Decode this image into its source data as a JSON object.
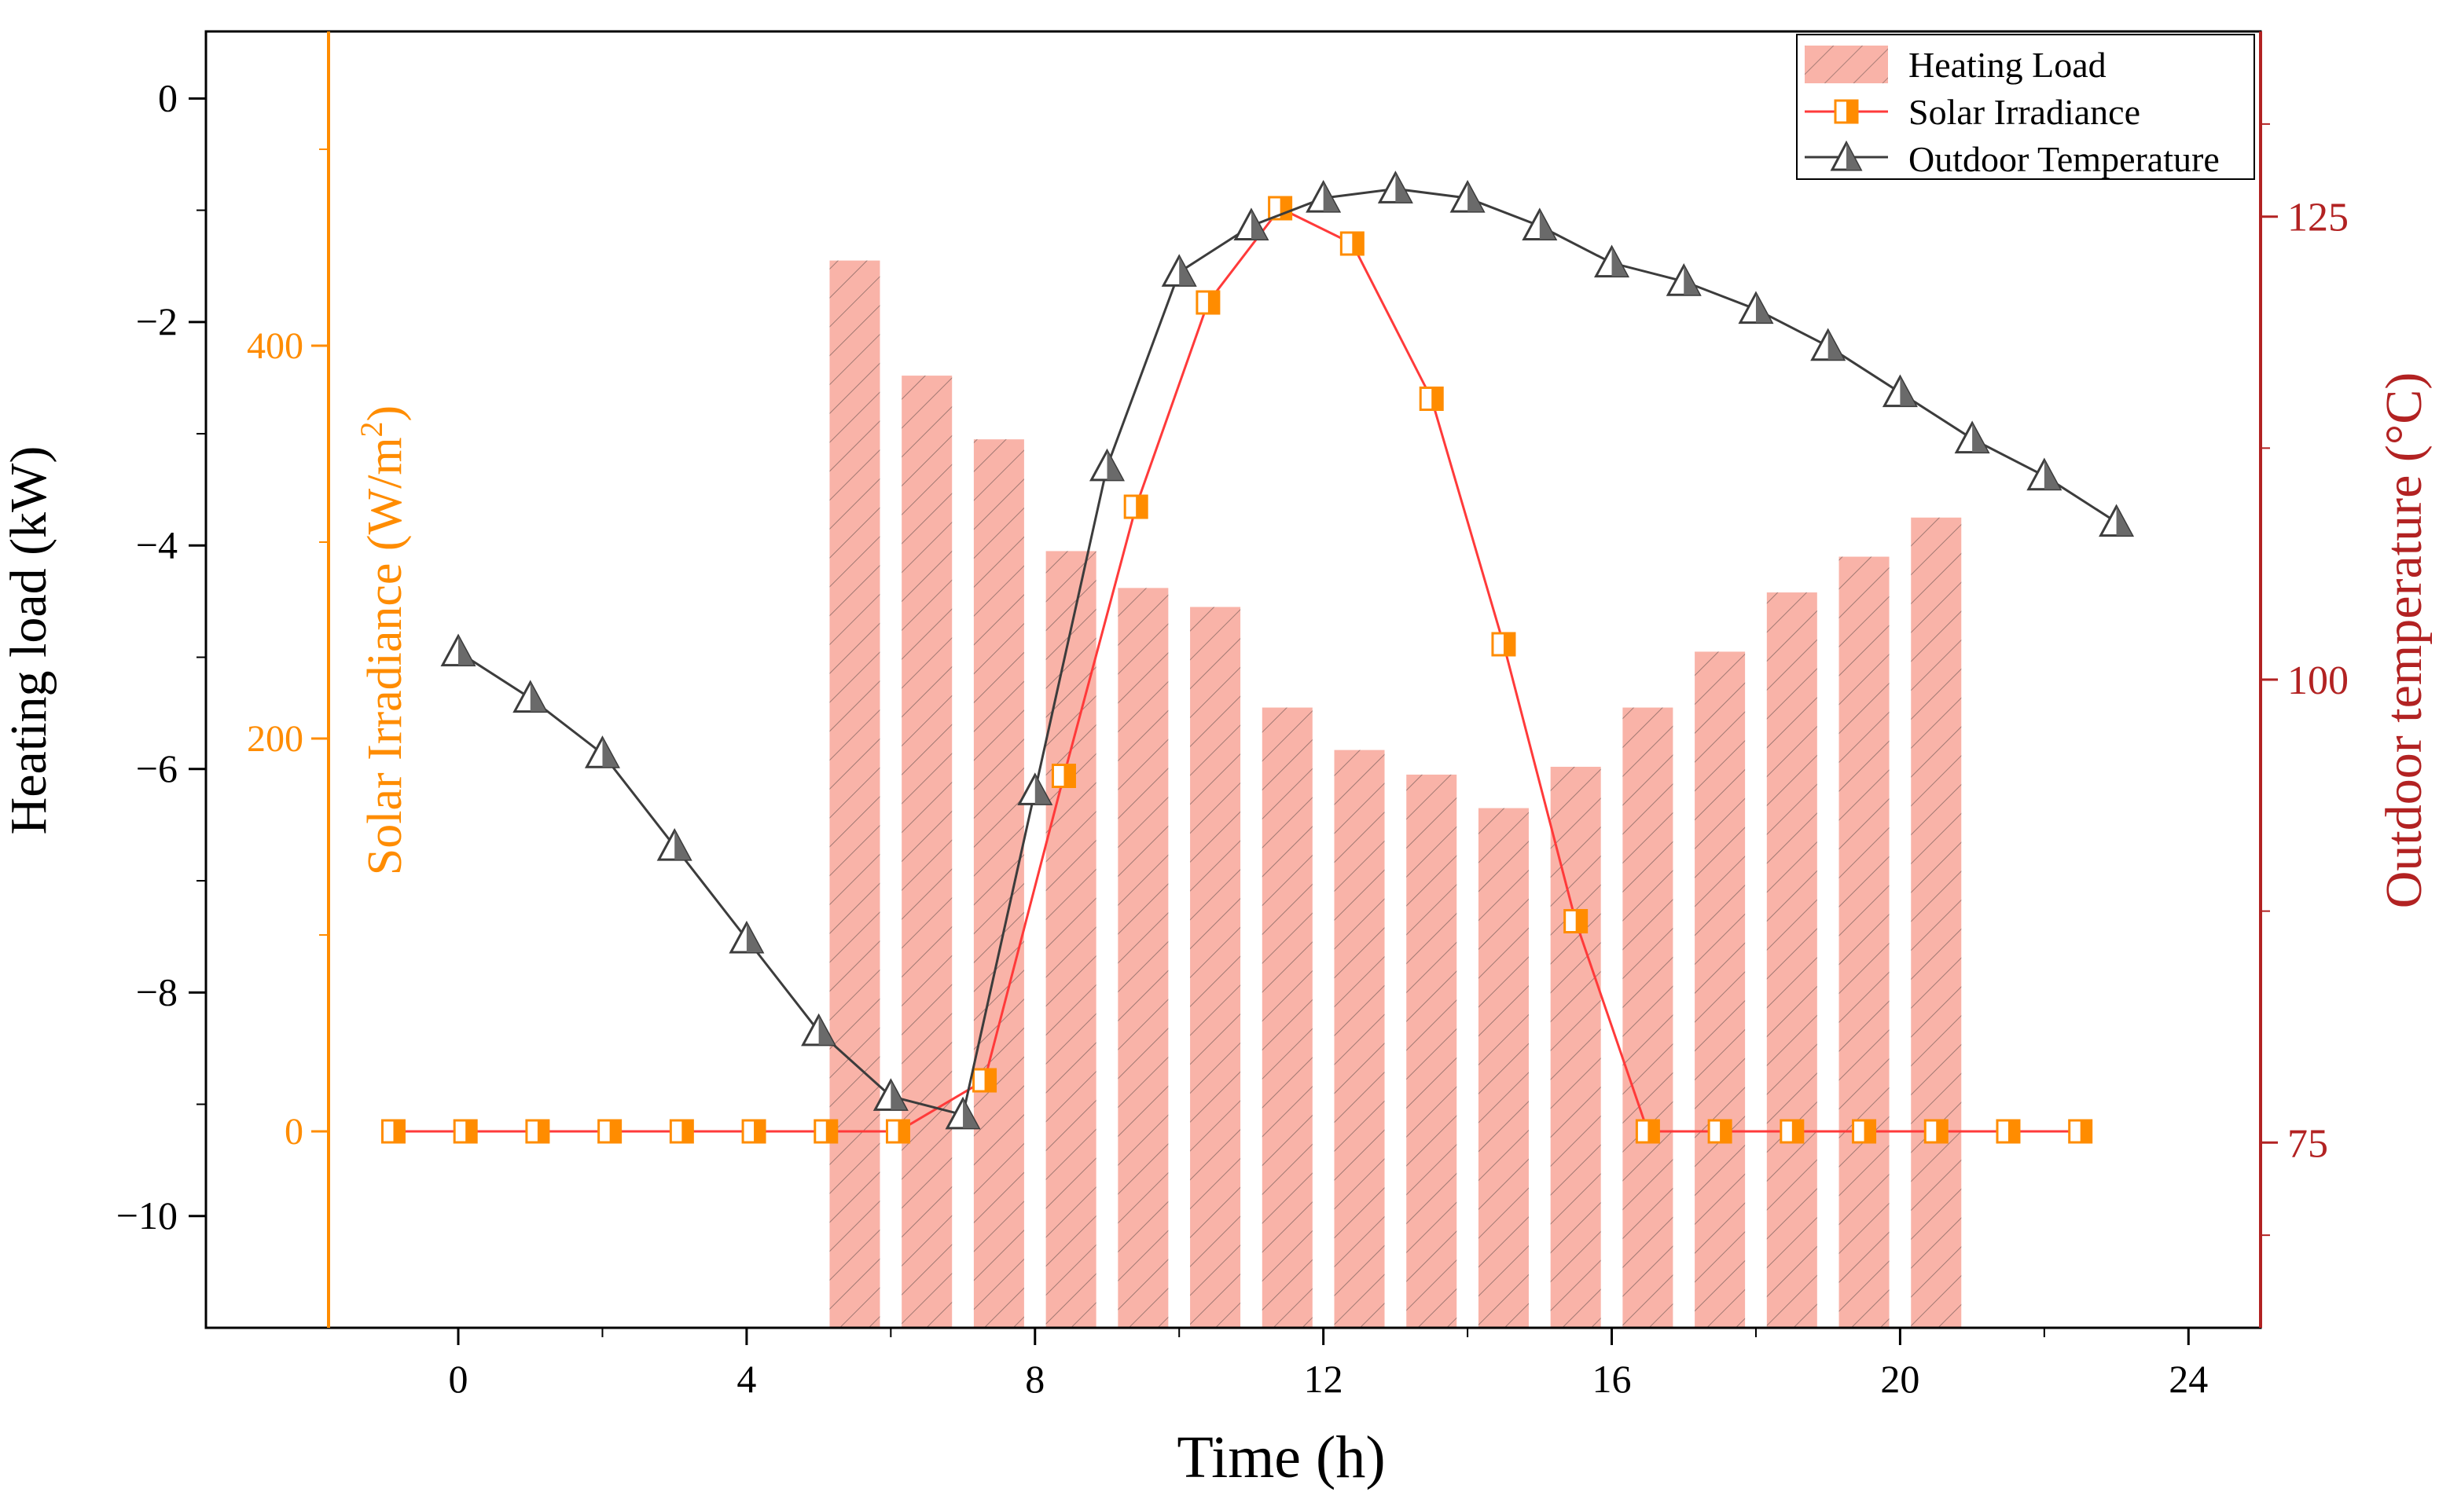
{
  "chart_data": {
    "type": "bar",
    "xlabel": "Time (h)",
    "x_ticks": [
      0,
      4,
      8,
      12,
      16,
      20,
      24
    ],
    "xlim": [
      -3.5,
      25
    ],
    "y_left": {
      "label": "Heating load (kW)",
      "ticks": [
        0,
        -2,
        -4,
        -6,
        -8,
        -10
      ],
      "tick_labels": [
        "0",
        "−2",
        "−4",
        "−6",
        "−8",
        "−10"
      ],
      "ylim": [
        -11,
        0.6
      ]
    },
    "y_irr": {
      "label": "Solar Irradiance (W/m",
      "label_sup": "2",
      "label_end": ")",
      "ticks": [
        0,
        200,
        400
      ],
      "ylim": [
        -100,
        560
      ],
      "color": "#ff8c00"
    },
    "y_right": {
      "label": "Outdoor temperature (°C)",
      "ticks": [
        75,
        100,
        125
      ],
      "ylim": [
        65,
        135
      ],
      "color": "#b22222"
    },
    "legend": {
      "position": "top-right",
      "entries": [
        "Heating Load",
        "Solar Irradiance",
        "Outdoor Temperature"
      ]
    },
    "series": [
      {
        "name": "Heating Load",
        "type": "bar",
        "color": "#f9b3a8",
        "x": [
          5.5,
          6.5,
          7.5,
          8.5,
          9.5,
          10.5,
          11.5,
          12.5,
          13.5,
          14.5,
          15.5,
          16.5,
          17.5,
          18.5,
          19.5,
          20.5
        ],
        "values": [
          -1.45,
          -2.48,
          -3.05,
          -4.05,
          -4.38,
          -4.55,
          -5.45,
          -5.83,
          -6.05,
          -6.35,
          -5.98,
          -5.45,
          -4.95,
          -4.42,
          -4.1,
          -3.75
        ]
      },
      {
        "name": "Solar Irradiance",
        "type": "line",
        "axis": "y_irr",
        "color": "#ff3a3a",
        "marker_color": "#ff8c00",
        "x": [
          -0.9,
          0.1,
          1.1,
          2.1,
          3.1,
          4.1,
          5.1,
          6.1,
          7.3,
          8.4,
          9.4,
          10.4,
          11.4,
          12.4,
          13.5,
          14.5,
          15.5,
          16.5,
          17.5,
          18.5,
          19.5,
          20.5,
          21.5,
          22.5
        ],
        "values": [
          0,
          0,
          0,
          0,
          0,
          0,
          0,
          0,
          26,
          181,
          318,
          422,
          470,
          452,
          373,
          248,
          107,
          0,
          0,
          0,
          0,
          0,
          0,
          0
        ]
      },
      {
        "name": "Outdoor Temperature",
        "type": "line",
        "axis": "y_right",
        "color": "#3c3c3c",
        "marker_color": "#6a6a6a",
        "x": [
          0,
          1,
          2,
          3,
          4,
          5,
          6,
          7,
          8,
          9,
          10,
          11,
          12,
          13,
          14,
          15,
          16,
          17,
          18,
          19,
          20,
          21,
          22,
          23
        ],
        "values": [
          101.5,
          99,
          96,
          91,
          86,
          81,
          77.5,
          76.5,
          94,
          111.5,
          122,
          124.5,
          126,
          126.5,
          126,
          124.5,
          122.5,
          121.5,
          120,
          118,
          115.5,
          113,
          111,
          108.5
        ]
      }
    ]
  }
}
